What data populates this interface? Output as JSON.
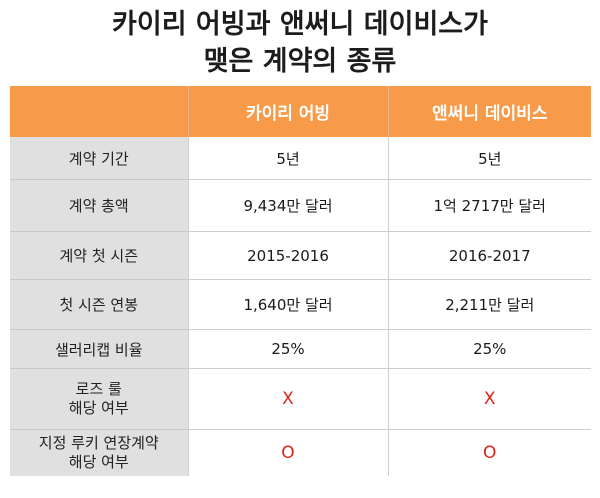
{
  "title": {
    "line1": "카이리 어빙과 앤써니 데이비스가",
    "line2": "맺은 계약의 종류"
  },
  "table": {
    "headers": [
      "",
      "카이리 어빙",
      "앤써니 데이비스"
    ],
    "rows": [
      {
        "label": "계약 기간",
        "label_line2": "",
        "irving": "5년",
        "davis": "5년"
      },
      {
        "label": "계약 총액",
        "label_line2": "",
        "irving": "9,434만 달러",
        "davis": "1억 2717만 달러"
      },
      {
        "label": "계약 첫 시즌",
        "label_line2": "",
        "irving": "2015-2016",
        "davis": "2016-2017"
      },
      {
        "label": "첫 시즌 연봉",
        "label_line2": "",
        "irving": "1,640만 달러",
        "davis": "2,211만 달러"
      },
      {
        "label": "샐러리캡 비율",
        "label_line2": "",
        "irving": "25%",
        "davis": "25%"
      },
      {
        "label": "로즈 룰",
        "label_line2": "해당 여부",
        "irving": "X",
        "davis": "X"
      },
      {
        "label": "지정 루키 연장계약",
        "label_line2": "해당 여부",
        "irving": "O",
        "davis": "O"
      }
    ]
  },
  "colors": {
    "header_bg": "#f79b4a",
    "label_bg": "#e0e0e0",
    "mark": "#e0221a"
  }
}
